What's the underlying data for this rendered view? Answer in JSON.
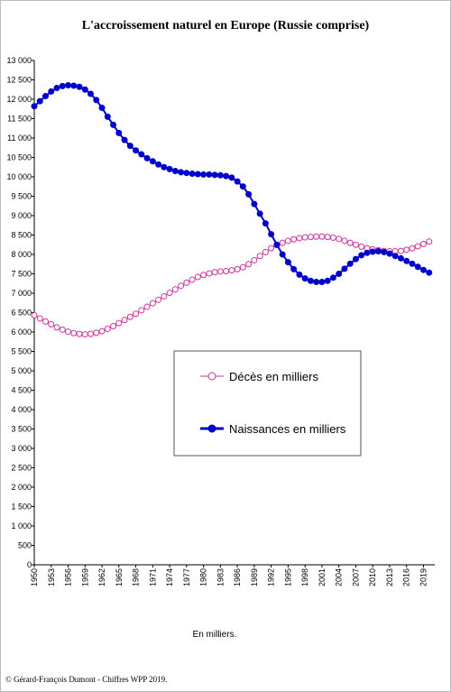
{
  "chart_data": {
    "type": "line",
    "title": "L'accroissement naturel en Europe (Russie comprise)",
    "subtitle": "En milliers.",
    "source": "© Gérard-François Dumont - Chiffres WPP 2019.",
    "x": [
      1950,
      1951,
      1952,
      1953,
      1954,
      1955,
      1956,
      1957,
      1958,
      1959,
      1960,
      1961,
      1962,
      1963,
      1964,
      1965,
      1966,
      1967,
      1968,
      1969,
      1970,
      1971,
      1972,
      1973,
      1974,
      1975,
      1976,
      1977,
      1978,
      1979,
      1980,
      1981,
      1982,
      1983,
      1984,
      1985,
      1986,
      1987,
      1988,
      1989,
      1990,
      1991,
      1992,
      1993,
      1994,
      1995,
      1996,
      1997,
      1998,
      1999,
      2000,
      2001,
      2002,
      2003,
      2004,
      2005,
      2006,
      2007,
      2008,
      2009,
      2010,
      2011,
      2012,
      2013,
      2014,
      2015,
      2016,
      2017,
      2018,
      2019,
      2020
    ],
    "series": [
      {
        "name": "Décès en milliers",
        "color": "#cc3399",
        "marker": "hollow",
        "values": [
          6430,
          6350,
          6270,
          6200,
          6120,
          6060,
          6010,
          5970,
          5950,
          5940,
          5950,
          5980,
          6020,
          6080,
          6150,
          6230,
          6310,
          6390,
          6470,
          6560,
          6650,
          6740,
          6830,
          6920,
          7010,
          7100,
          7190,
          7270,
          7350,
          7420,
          7470,
          7510,
          7540,
          7560,
          7570,
          7590,
          7620,
          7670,
          7750,
          7850,
          7960,
          8060,
          8160,
          8240,
          8300,
          8350,
          8390,
          8420,
          8440,
          8450,
          8460,
          8460,
          8450,
          8430,
          8400,
          8350,
          8300,
          8250,
          8200,
          8160,
          8130,
          8110,
          8090,
          8080,
          8080,
          8090,
          8120,
          8160,
          8210,
          8270,
          8330
        ]
      },
      {
        "name": "Naissances en milliers",
        "color": "#0000cc",
        "marker": "filled",
        "values": [
          11820,
          11950,
          12080,
          12200,
          12290,
          12340,
          12360,
          12350,
          12320,
          12250,
          12140,
          11980,
          11780,
          11550,
          11340,
          11130,
          10950,
          10800,
          10680,
          10580,
          10480,
          10400,
          10320,
          10250,
          10200,
          10150,
          10120,
          10100,
          10080,
          10070,
          10060,
          10060,
          10050,
          10040,
          10020,
          9980,
          9880,
          9750,
          9550,
          9300,
          9050,
          8800,
          8520,
          8250,
          8000,
          7800,
          7620,
          7480,
          7380,
          7320,
          7290,
          7290,
          7320,
          7400,
          7500,
          7630,
          7760,
          7880,
          7980,
          8040,
          8070,
          8080,
          8060,
          8020,
          7960,
          7900,
          7830,
          7760,
          7680,
          7600,
          7530
        ]
      }
    ],
    "xlim": [
      1950,
      2021
    ],
    "xticks": [
      1950,
      1953,
      1956,
      1959,
      1962,
      1965,
      1968,
      1971,
      1974,
      1977,
      1980,
      1983,
      1986,
      1989,
      1992,
      1995,
      1998,
      2001,
      2004,
      2007,
      2010,
      2013,
      2016,
      2019
    ],
    "ylim": [
      0,
      13000
    ],
    "yticks": [
      0,
      500,
      {
        "value": 1000,
        "label": "1 000"
      },
      {
        "value": 1500,
        "label": "1 500"
      },
      {
        "value": 2000,
        "label": "2 000"
      },
      {
        "value": 2500,
        "label": "2 500"
      },
      {
        "value": 3000,
        "label": "3 000"
      },
      {
        "value": 3500,
        "label": "3 500"
      },
      {
        "value": 4000,
        "label": "4 000"
      },
      {
        "value": 4500,
        "label": "4 500"
      },
      {
        "value": 5000,
        "label": "5 000"
      },
      {
        "value": 5500,
        "label": "5 500"
      },
      {
        "value": 6000,
        "label": "6 000"
      },
      {
        "value": 6500,
        "label": "6 500"
      },
      {
        "value": 7000,
        "label": "7 000"
      },
      {
        "value": 7500,
        "label": "7 500"
      },
      {
        "value": 8000,
        "label": "8 000"
      },
      {
        "value": 8500,
        "label": "8 500"
      },
      {
        "value": 9000,
        "label": "9 000"
      },
      {
        "value": 9500,
        "label": "9 500"
      },
      {
        "value": 10000,
        "label": "10 000"
      },
      {
        "value": 10500,
        "label": "10 500"
      },
      {
        "value": 11000,
        "label": "11 000"
      },
      {
        "value": 11500,
        "label": "11 500"
      },
      {
        "value": 12000,
        "label": "12 000"
      },
      {
        "value": 12500,
        "label": "12 500"
      },
      {
        "value": 13000,
        "label": "13 000"
      }
    ]
  }
}
